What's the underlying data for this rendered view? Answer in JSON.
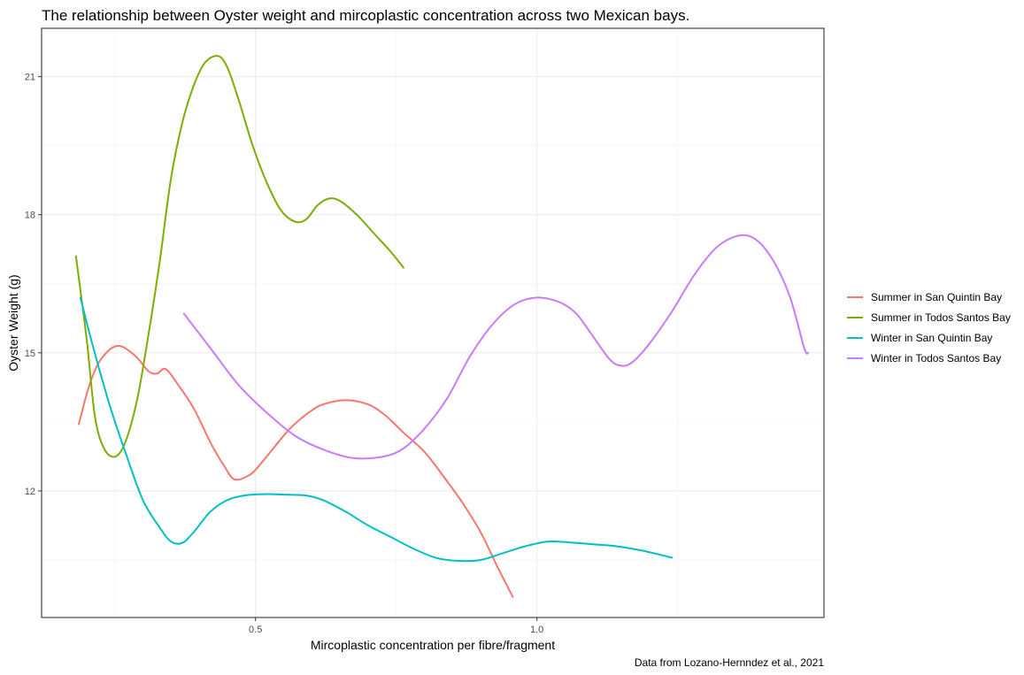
{
  "chart_data": {
    "type": "line",
    "title": "The relationship between Oyster weight and mircoplastic concentration across two Mexican bays.",
    "xlabel": "Mircoplastic concentration per fibre/fragment",
    "ylabel": "Oyster Weight (g)",
    "caption": "Data from Lozano-Hernndez et al., 2021",
    "xlim": [
      0.12,
      1.51
    ],
    "ylim": [
      9.25,
      22.05
    ],
    "x_ticks": [
      0.5,
      1.0
    ],
    "x_tick_labels": [
      "0.5",
      "1.0"
    ],
    "y_ticks": [
      12,
      15,
      18,
      21
    ],
    "y_tick_labels": [
      "12",
      "15",
      "18",
      "21"
    ],
    "grid": true,
    "legend_position": "right",
    "series": [
      {
        "name": "Summer in San Quintin Bay",
        "color": "#F8766D",
        "points": [
          [
            0.186,
            13.45
          ],
          [
            0.205,
            14.3
          ],
          [
            0.225,
            14.85
          ],
          [
            0.254,
            15.15
          ],
          [
            0.285,
            14.95
          ],
          [
            0.31,
            14.6
          ],
          [
            0.325,
            14.55
          ],
          [
            0.336,
            14.65
          ],
          [
            0.345,
            14.6
          ],
          [
            0.36,
            14.35
          ],
          [
            0.39,
            13.8
          ],
          [
            0.42,
            13.05
          ],
          [
            0.444,
            12.55
          ],
          [
            0.463,
            12.25
          ],
          [
            0.49,
            12.35
          ],
          [
            0.51,
            12.6
          ],
          [
            0.54,
            13.05
          ],
          [
            0.565,
            13.4
          ],
          [
            0.6,
            13.75
          ],
          [
            0.625,
            13.9
          ],
          [
            0.662,
            13.97
          ],
          [
            0.7,
            13.88
          ],
          [
            0.73,
            13.65
          ],
          [
            0.76,
            13.3
          ],
          [
            0.8,
            12.85
          ],
          [
            0.835,
            12.3
          ],
          [
            0.87,
            11.7
          ],
          [
            0.9,
            11.1
          ],
          [
            0.93,
            10.35
          ],
          [
            0.957,
            9.7
          ]
        ]
      },
      {
        "name": "Summer in Todos Santos Bay",
        "color": "#7CAE00",
        "points": [
          [
            0.181,
            17.1
          ],
          [
            0.2,
            15.3
          ],
          [
            0.215,
            13.6
          ],
          [
            0.232,
            12.9
          ],
          [
            0.252,
            12.75
          ],
          [
            0.27,
            13.1
          ],
          [
            0.29,
            14.0
          ],
          [
            0.31,
            15.4
          ],
          [
            0.33,
            17.0
          ],
          [
            0.35,
            18.8
          ],
          [
            0.37,
            20.0
          ],
          [
            0.39,
            20.8
          ],
          [
            0.41,
            21.3
          ],
          [
            0.433,
            21.45
          ],
          [
            0.45,
            21.2
          ],
          [
            0.47,
            20.5
          ],
          [
            0.495,
            19.5
          ],
          [
            0.52,
            18.7
          ],
          [
            0.545,
            18.1
          ],
          [
            0.57,
            17.85
          ],
          [
            0.59,
            17.9
          ],
          [
            0.61,
            18.2
          ],
          [
            0.63,
            18.35
          ],
          [
            0.65,
            18.3
          ],
          [
            0.68,
            18.0
          ],
          [
            0.71,
            17.6
          ],
          [
            0.74,
            17.2
          ],
          [
            0.763,
            16.85
          ]
        ]
      },
      {
        "name": "Winter in San Quintin Bay",
        "color": "#00BFC4",
        "points": [
          [
            0.189,
            16.2
          ],
          [
            0.21,
            15.2
          ],
          [
            0.24,
            13.9
          ],
          [
            0.27,
            12.8
          ],
          [
            0.3,
            11.8
          ],
          [
            0.33,
            11.2
          ],
          [
            0.35,
            10.9
          ],
          [
            0.37,
            10.87
          ],
          [
            0.39,
            11.1
          ],
          [
            0.42,
            11.55
          ],
          [
            0.45,
            11.8
          ],
          [
            0.48,
            11.9
          ],
          [
            0.515,
            11.93
          ],
          [
            0.55,
            11.92
          ],
          [
            0.59,
            11.9
          ],
          [
            0.62,
            11.8
          ],
          [
            0.66,
            11.55
          ],
          [
            0.7,
            11.25
          ],
          [
            0.74,
            11.0
          ],
          [
            0.78,
            10.75
          ],
          [
            0.82,
            10.55
          ],
          [
            0.86,
            10.48
          ],
          [
            0.9,
            10.5
          ],
          [
            0.94,
            10.65
          ],
          [
            0.98,
            10.8
          ],
          [
            1.02,
            10.9
          ],
          [
            1.06,
            10.88
          ],
          [
            1.1,
            10.84
          ],
          [
            1.14,
            10.8
          ],
          [
            1.18,
            10.72
          ],
          [
            1.21,
            10.64
          ],
          [
            1.24,
            10.55
          ]
        ]
      },
      {
        "name": "Winter in Todos Santos Bay",
        "color": "#C77CFF",
        "points": [
          [
            0.373,
            15.85
          ],
          [
            0.42,
            15.1
          ],
          [
            0.47,
            14.3
          ],
          [
            0.52,
            13.7
          ],
          [
            0.57,
            13.2
          ],
          [
            0.62,
            12.9
          ],
          [
            0.67,
            12.72
          ],
          [
            0.72,
            12.73
          ],
          [
            0.76,
            12.9
          ],
          [
            0.8,
            13.35
          ],
          [
            0.84,
            14.0
          ],
          [
            0.88,
            14.9
          ],
          [
            0.92,
            15.6
          ],
          [
            0.96,
            16.05
          ],
          [
            1.0,
            16.2
          ],
          [
            1.04,
            16.1
          ],
          [
            1.07,
            15.85
          ],
          [
            1.1,
            15.35
          ],
          [
            1.13,
            14.85
          ],
          [
            1.15,
            14.72
          ],
          [
            1.17,
            14.8
          ],
          [
            1.2,
            15.2
          ],
          [
            1.24,
            15.9
          ],
          [
            1.28,
            16.7
          ],
          [
            1.32,
            17.3
          ],
          [
            1.36,
            17.55
          ],
          [
            1.39,
            17.45
          ],
          [
            1.42,
            17.0
          ],
          [
            1.45,
            16.2
          ],
          [
            1.475,
            15.1
          ],
          [
            1.482,
            15.0
          ]
        ]
      }
    ]
  }
}
